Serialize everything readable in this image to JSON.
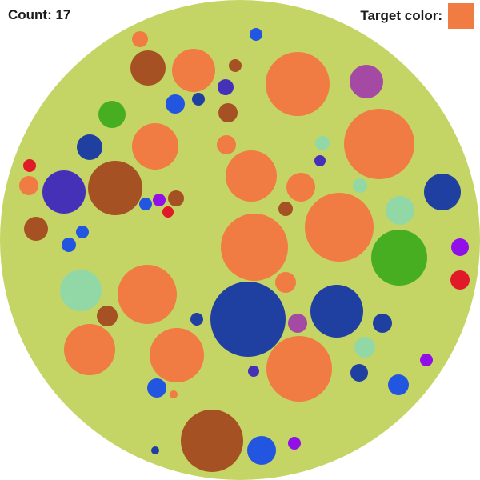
{
  "hud": {
    "count_label": "Count: 17",
    "count": 17,
    "target_label": "Target color:",
    "target_color": "#F07B43"
  },
  "colors": {
    "arena": "#C4D565",
    "orange": "#F07B43",
    "brown": "#A65123",
    "navy": "#1F40A0",
    "blue": "#2255E0",
    "indigo": "#4530B8",
    "purple": "#9210E8",
    "magenta": "#A44AA4",
    "green": "#47AE22",
    "mint": "#92D8A6",
    "red": "#E01A28"
  },
  "palette": [
    "orange",
    "brown",
    "navy",
    "blue",
    "indigo",
    "purple",
    "magenta",
    "green",
    "mint",
    "red"
  ],
  "icons": {
    "target_swatch": "color-swatch"
  }
}
